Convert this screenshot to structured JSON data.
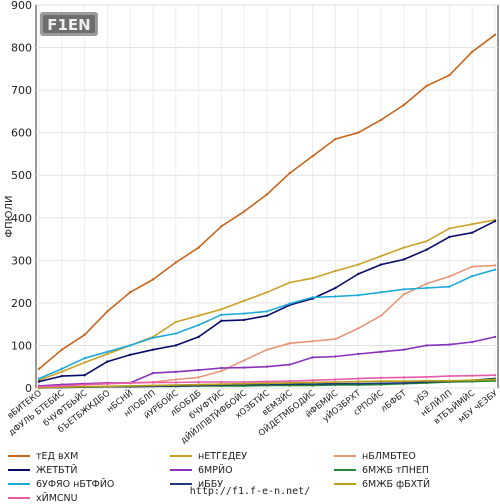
{
  "footer": {
    "url": "http://f1.f-e-n.net/"
  },
  "logo": {
    "text": "F1EN"
  },
  "chart_data": {
    "type": "line",
    "ylabel": "ФПЮЛИ",
    "ylim": [
      0,
      900
    ],
    "yticks": [
      0,
      100,
      200,
      300,
      400,
      500,
      600,
      700,
      800,
      900
    ],
    "categories": [
      "вБИТЕКО",
      "дФУЛЬ БТЕБЙС",
      "бЧУФТБЬЙС",
      "бЪЕТБЖКДБО",
      "нБСНЙ",
      "нПОБЛП",
      "йУРБОЙС",
      "лБОБДБ",
      "бЧУФТЙС",
      "дЙЙЛПВТЙФБОЙС",
      "хОЗБТЙС",
      "вЕМЗЙС",
      "ОЙДЕТМБОДЙС",
      "йФБМЙС",
      "уЙОЗБРХТ",
      "сРПОЙС",
      "лБФБТ",
      "уБЭ",
      "нЕЛЙЛП",
      "вТБЪЙМЙС",
      "мБУ чЕЗБУ"
    ],
    "series": [
      {
        "name": "тЕД вХМ",
        "color": "#c8651b",
        "values": [
          45,
          90,
          125,
          180,
          225,
          255,
          295,
          330,
          380,
          415,
          455,
          505,
          545,
          585,
          600,
          630,
          665,
          710,
          735,
          790,
          830
        ]
      },
      {
        "name": "нЕТГЕДЕУ",
        "color": "#c9a227",
        "values": [
          18,
          38,
          60,
          80,
          100,
          120,
          155,
          170,
          185,
          205,
          225,
          248,
          258,
          275,
          290,
          310,
          330,
          345,
          375,
          385,
          395
        ]
      },
      {
        "name": "нБЛМБТЕО",
        "color": "#e8967a",
        "values": [
          2,
          5,
          8,
          10,
          12,
          14,
          20,
          25,
          40,
          65,
          90,
          105,
          110,
          115,
          140,
          170,
          220,
          245,
          262,
          285,
          288
        ]
      },
      {
        "name": "ЖЕТБТЙ",
        "color": "#0a0a6a",
        "values": [
          15,
          28,
          30,
          62,
          78,
          90,
          100,
          120,
          158,
          160,
          170,
          195,
          210,
          235,
          268,
          290,
          302,
          325,
          355,
          365,
          392
        ]
      },
      {
        "name": "6МРЙО",
        "color": "#8833bb",
        "values": [
          5,
          8,
          10,
          12,
          12,
          35,
          38,
          42,
          47,
          48,
          50,
          55,
          72,
          74,
          80,
          85,
          90,
          100,
          102,
          108,
          120
        ]
      },
      {
        "name": "6МЖБ тПНЕП",
        "color": "#228833",
        "values": [
          0,
          2,
          2,
          3,
          3,
          4,
          4,
          5,
          5,
          5,
          6,
          6,
          6,
          7,
          7,
          8,
          10,
          12,
          14,
          15,
          17
        ]
      },
      {
        "name": "6УФЯО нБТФЙО",
        "color": "#1eaad8",
        "values": [
          22,
          45,
          70,
          85,
          100,
          118,
          128,
          148,
          172,
          175,
          180,
          198,
          213,
          215,
          218,
          225,
          232,
          235,
          238,
          263,
          278
        ]
      },
      {
        "name": "иББУ",
        "color": "#1e3a78",
        "values": [
          0,
          1,
          2,
          3,
          3,
          4,
          5,
          6,
          7,
          8,
          8,
          9,
          9,
          10,
          10,
          11,
          12,
          14,
          16,
          18,
          22
        ]
      },
      {
        "name": "6МЖБ фБХТЙ",
        "color": "#b8a018",
        "values": [
          0,
          2,
          3,
          4,
          5,
          6,
          7,
          8,
          9,
          10,
          11,
          12,
          13,
          14,
          15,
          16,
          16,
          17,
          17,
          18,
          20
        ]
      },
      {
        "name": "хЙМСNU",
        "color": "#e85aa8",
        "values": [
          3,
          5,
          8,
          10,
          12,
          13,
          13,
          14,
          14,
          14,
          15,
          16,
          18,
          20,
          22,
          24,
          25,
          26,
          28,
          29,
          30
        ]
      }
    ]
  }
}
